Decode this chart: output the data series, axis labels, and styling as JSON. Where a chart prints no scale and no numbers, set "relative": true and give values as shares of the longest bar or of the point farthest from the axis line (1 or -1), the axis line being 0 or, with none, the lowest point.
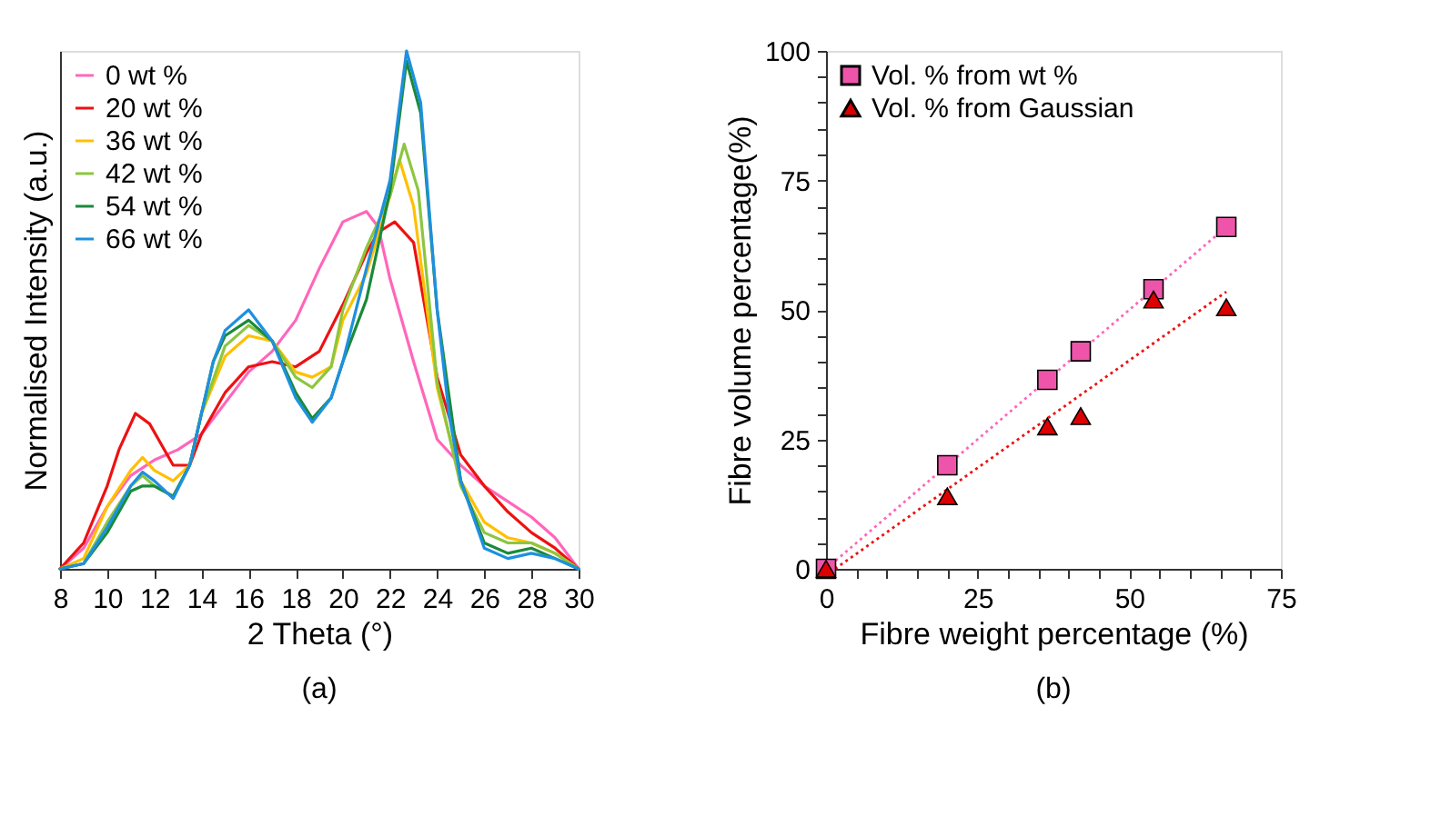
{
  "chart_data": [
    {
      "type": "line",
      "xlabel": "2 Theta (°)",
      "ylabel": "Normalised Intensity (a.u.)",
      "relative": true,
      "xlim": [
        8,
        30
      ],
      "xticks": [
        8,
        10,
        12,
        14,
        16,
        18,
        20,
        22,
        24,
        26,
        28,
        30
      ],
      "grid": false,
      "legend": "top left",
      "line_style": "solid",
      "annotations": [
        "(a)"
      ],
      "series": [
        {
          "name": "0 wt %",
          "color": "#ff66bb",
          "x": [
            8,
            9,
            10,
            11,
            12,
            13,
            14,
            15,
            16,
            17,
            18,
            19,
            20,
            20.5,
            21,
            21.5,
            22,
            23,
            24,
            25,
            26,
            27,
            28,
            29,
            30
          ],
          "values": [
            0,
            0.04,
            0.12,
            0.18,
            0.21,
            0.23,
            0.26,
            0.32,
            0.38,
            0.42,
            0.48,
            0.58,
            0.67,
            0.68,
            0.69,
            0.66,
            0.56,
            0.4,
            0.25,
            0.2,
            0.16,
            0.13,
            0.1,
            0.06,
            0
          ]
        },
        {
          "name": "20 wt %",
          "color": "#ee1111",
          "x": [
            8,
            9,
            10,
            10.5,
            11.2,
            11.8,
            12.3,
            12.8,
            13.5,
            14,
            15,
            16,
            17,
            18,
            19,
            20,
            21,
            21.5,
            22.2,
            23,
            24,
            25,
            26,
            27,
            28,
            29,
            30
          ],
          "values": [
            0,
            0.05,
            0.16,
            0.23,
            0.3,
            0.28,
            0.24,
            0.2,
            0.2,
            0.26,
            0.34,
            0.39,
            0.4,
            0.39,
            0.42,
            0.51,
            0.61,
            0.65,
            0.67,
            0.63,
            0.37,
            0.22,
            0.16,
            0.11,
            0.07,
            0.04,
            0
          ]
        },
        {
          "name": "36 wt %",
          "color": "#ffc000",
          "x": [
            8,
            9,
            10,
            11,
            11.5,
            12,
            12.8,
            13.5,
            14,
            15,
            16,
            17,
            18,
            18.7,
            19.5,
            20,
            21,
            22,
            22.4,
            23,
            24,
            25,
            26,
            27,
            28,
            29,
            30
          ],
          "values": [
            0,
            0.02,
            0.12,
            0.19,
            0.215,
            0.19,
            0.17,
            0.2,
            0.3,
            0.41,
            0.45,
            0.44,
            0.38,
            0.37,
            0.39,
            0.48,
            0.57,
            0.72,
            0.79,
            0.7,
            0.35,
            0.17,
            0.09,
            0.06,
            0.05,
            0.03,
            0
          ]
        },
        {
          "name": "42 wt %",
          "color": "#8cc63f",
          "x": [
            8,
            9,
            10,
            11,
            11.5,
            12,
            12.8,
            13.5,
            14,
            15,
            16,
            17,
            18,
            18.7,
            19.5,
            20,
            21,
            22,
            22.6,
            23.2,
            24,
            25,
            26,
            27,
            28,
            29,
            30
          ],
          "values": [
            0,
            0.01,
            0.09,
            0.16,
            0.18,
            0.16,
            0.14,
            0.2,
            0.3,
            0.43,
            0.47,
            0.44,
            0.37,
            0.35,
            0.39,
            0.5,
            0.62,
            0.72,
            0.82,
            0.73,
            0.36,
            0.16,
            0.07,
            0.05,
            0.05,
            0.03,
            0
          ]
        },
        {
          "name": "54 wt %",
          "color": "#1a8a3a",
          "x": [
            8,
            9,
            10,
            11,
            11.5,
            12,
            12.8,
            13.5,
            14,
            14.5,
            15,
            16,
            17,
            18,
            18.7,
            19.5,
            20,
            21,
            22,
            22.7,
            23.3,
            24,
            25,
            26,
            27,
            28,
            29,
            30
          ],
          "values": [
            0,
            0.01,
            0.07,
            0.15,
            0.16,
            0.16,
            0.14,
            0.2,
            0.3,
            0.4,
            0.45,
            0.48,
            0.44,
            0.34,
            0.29,
            0.33,
            0.4,
            0.52,
            0.73,
            0.98,
            0.88,
            0.5,
            0.17,
            0.05,
            0.03,
            0.04,
            0.02,
            0
          ]
        },
        {
          "name": "66 wt %",
          "color": "#1e90e0",
          "x": [
            8,
            9,
            10,
            11,
            11.5,
            12,
            12.8,
            13.5,
            14,
            14.5,
            15,
            16,
            17,
            18,
            18.7,
            19.5,
            20,
            21,
            22,
            22.7,
            23.3,
            24,
            24.5,
            25,
            26,
            27,
            28,
            29,
            30
          ],
          "values": [
            0,
            0.01,
            0.08,
            0.16,
            0.187,
            0.17,
            0.136,
            0.2,
            0.3,
            0.4,
            0.46,
            0.5,
            0.44,
            0.33,
            0.283,
            0.33,
            0.4,
            0.58,
            0.75,
            1.0,
            0.9,
            0.5,
            0.3,
            0.17,
            0.04,
            0.02,
            0.03,
            0.02,
            0
          ]
        }
      ]
    },
    {
      "type": "scatter",
      "xlabel": "Fibre weight percentage (%)",
      "ylabel": "Fibre volume percentage(%)",
      "xlim": [
        0,
        75
      ],
      "ylim": [
        0,
        100
      ],
      "xticks": [
        0,
        {
          "value": 5,
          "label": null
        },
        {
          "value": 10,
          "label": null
        },
        {
          "value": 15,
          "label": null
        },
        {
          "value": 20,
          "label": null
        },
        25,
        {
          "value": 30,
          "label": null
        },
        {
          "value": 35,
          "label": null
        },
        {
          "value": 40,
          "label": null
        },
        {
          "value": 45,
          "label": null
        },
        50,
        {
          "value": 55,
          "label": null
        },
        {
          "value": 60,
          "label": null
        },
        {
          "value": 65,
          "label": null
        },
        {
          "value": 70,
          "label": null
        },
        75
      ],
      "yticks": [
        0,
        {
          "value": 5,
          "label": null
        },
        {
          "value": 10,
          "label": null
        },
        {
          "value": 15,
          "label": null
        },
        {
          "value": 20,
          "label": null
        },
        25,
        {
          "value": 30,
          "label": null
        },
        {
          "value": 35,
          "label": null
        },
        {
          "value": 40,
          "label": null
        },
        {
          "value": 45,
          "label": null
        },
        50,
        {
          "value": 55,
          "label": null
        },
        {
          "value": 60,
          "label": null
        },
        {
          "value": 65,
          "label": null
        },
        {
          "value": 70,
          "label": null
        },
        75,
        {
          "value": 80,
          "label": null
        },
        {
          "value": 85,
          "label": null
        },
        {
          "value": 90,
          "label": null
        },
        {
          "value": 95,
          "label": null
        },
        100
      ],
      "grid": false,
      "legend": "top left",
      "annotations": [
        "(b)"
      ],
      "series": [
        {
          "type": "line",
          "color": "#ff66bb",
          "line_style": "dotted",
          "x": [
            0,
            66
          ],
          "values": [
            0,
            66
          ]
        },
        {
          "type": "line",
          "color": "#ee1111",
          "line_style": "dotted",
          "x": [
            1.5,
            66
          ],
          "values": [
            0,
            53.5
          ]
        },
        {
          "name": "Vol. % from wt %",
          "color": "#ee55aa",
          "marker": "square",
          "x": [
            0,
            20,
            36.5,
            42,
            54,
            66
          ],
          "values": [
            0,
            20,
            36.5,
            42,
            54,
            66
          ]
        },
        {
          "name": "Vol. % from Gaussian",
          "color": "#dd0000",
          "marker": "triangle",
          "x": [
            0,
            20,
            36.5,
            42,
            54,
            66
          ],
          "values": [
            0,
            14,
            27.5,
            29.5,
            52,
            50.5
          ]
        }
      ]
    }
  ]
}
